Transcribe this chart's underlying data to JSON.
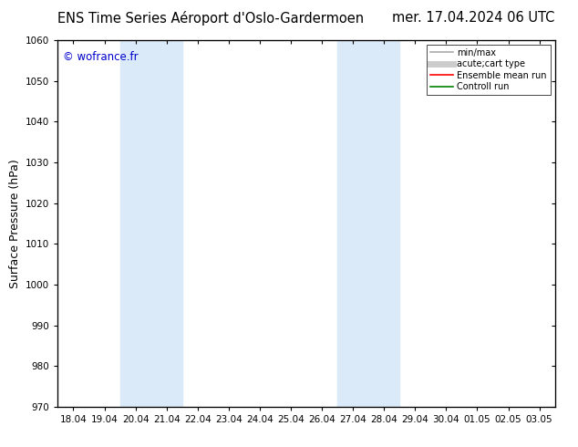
{
  "title_left": "ENS Time Series Aéroport d'Oslo-Gardermoen",
  "title_right": "mer. 17.04.2024 06 UTC",
  "ylabel": "Surface Pressure (hPa)",
  "ylim": [
    970,
    1060
  ],
  "yticks": [
    970,
    980,
    990,
    1000,
    1010,
    1020,
    1030,
    1040,
    1050,
    1060
  ],
  "xtick_labels": [
    "18.04",
    "19.04",
    "20.04",
    "21.04",
    "22.04",
    "23.04",
    "24.04",
    "25.04",
    "26.04",
    "27.04",
    "28.04",
    "29.04",
    "30.04",
    "01.05",
    "02.05",
    "03.05"
  ],
  "watermark": "© wofrance.fr",
  "watermark_color": "#0000cc",
  "shaded_bands": [
    {
      "xstart": 2,
      "xend": 4,
      "color": "#daeaf8"
    },
    {
      "xstart": 9,
      "xend": 11,
      "color": "#daeaf8"
    }
  ],
  "legend_items": [
    {
      "label": "min/max",
      "color": "#aaaaaa",
      "lw": 1.2,
      "style": "line"
    },
    {
      "label": "acute;cart type",
      "color": "#cccccc",
      "lw": 5,
      "style": "line"
    },
    {
      "label": "Ensemble mean run",
      "color": "#ff0000",
      "lw": 1.2,
      "style": "line"
    },
    {
      "label": "Controll run",
      "color": "#008000",
      "lw": 1.2,
      "style": "line"
    }
  ],
  "bg_color": "#ffffff",
  "plot_bg_color": "#ffffff",
  "grid_color": "#dddddd",
  "title_fontsize": 10.5,
  "tick_fontsize": 7.5,
  "label_fontsize": 9
}
